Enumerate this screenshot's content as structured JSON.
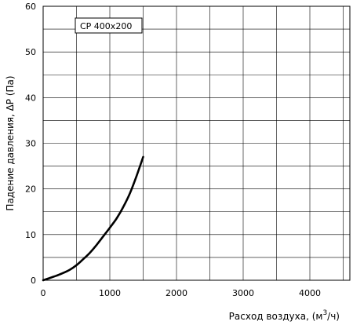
{
  "chart_data": {
    "type": "line",
    "title": "",
    "xlabel": "Расход воздуха, (м3/ч)",
    "xlabel_parts": {
      "base": "Расход воздуха, (м",
      "superscript": "3",
      "suffix": "/ч)"
    },
    "ylabel": "Падение давления, ΔP (Па)",
    "xlim": [
      0,
      4600
    ],
    "ylim": [
      0,
      60
    ],
    "x_ticks": [
      0,
      1000,
      2000,
      3000,
      4000
    ],
    "y_ticks": [
      0,
      10,
      20,
      30,
      40,
      50,
      60
    ],
    "grid": true,
    "x_grid_step": 500,
    "y_grid_step": 5,
    "legend_position": "top-left",
    "series": [
      {
        "name": "CP  400x200",
        "color": "#000000",
        "x": [
          0,
          100,
          200,
          300,
          400,
          500,
          600,
          700,
          800,
          900,
          1000,
          1100,
          1200,
          1300,
          1400,
          1500
        ],
        "y": [
          0,
          0.5,
          1.0,
          1.6,
          2.3,
          3.3,
          4.6,
          6.0,
          7.7,
          9.6,
          11.5,
          13.5,
          16.0,
          19.0,
          22.8,
          27.0
        ]
      }
    ]
  }
}
